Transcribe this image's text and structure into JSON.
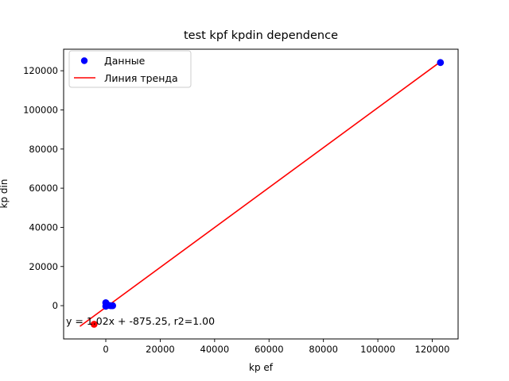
{
  "chart_data": {
    "type": "scatter",
    "title": "test kpf kpdin dependence",
    "xlabel": "kp ef",
    "ylabel": "kp din",
    "xlim": [
      -15500,
      129500
    ],
    "ylim": [
      -17000,
      131000
    ],
    "xticks": [
      0,
      20000,
      40000,
      60000,
      80000,
      100000,
      120000
    ],
    "yticks": [
      0,
      20000,
      40000,
      60000,
      80000,
      100000,
      120000
    ],
    "series": [
      {
        "name": "Данные",
        "kind": "scatter",
        "color": "#0000ff",
        "points": [
          [
            0,
            1500
          ],
          [
            300,
            800
          ],
          [
            500,
            300
          ],
          [
            200,
            0
          ],
          [
            1000,
            200
          ],
          [
            1800,
            0
          ],
          [
            2500,
            0
          ],
          [
            0,
            -300
          ],
          [
            123000,
            124200
          ]
        ]
      },
      {
        "name": "Линия тренда",
        "kind": "line",
        "color": "#ff0000",
        "points": [
          [
            -9500,
            -10565
          ],
          [
            123000,
            124585
          ]
        ]
      },
      {
        "name": "",
        "kind": "scatter",
        "color": "#ff0000",
        "points": [
          [
            -4300,
            -9500
          ]
        ]
      }
    ],
    "annotation": {
      "text": "y = 1.02x + -875.25, r2=1.00",
      "x": -15500,
      "y": -6500
    },
    "legend": "top-left",
    "grid": false
  }
}
